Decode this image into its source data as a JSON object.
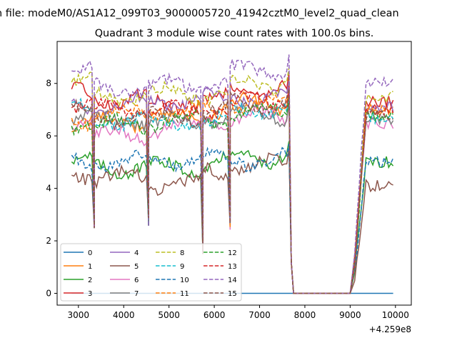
{
  "chart_data": {
    "type": "line",
    "suptitle": "n file: modeM0/AS1A12_099T03_9000005720_41942cztM0_level2_quad_clean",
    "title": "Quadrant 3 module wise count rates with 100.0s bins.",
    "xlabel": "",
    "ylabel": "",
    "x_offset_label": "+4.259e8",
    "xlim": [
      2530,
      10350
    ],
    "ylim": [
      -0.45,
      9.6
    ],
    "xticks": [
      3000,
      4000,
      5000,
      6000,
      7000,
      8000,
      9000,
      10000
    ],
    "xtick_labels": [
      "3000",
      "4000",
      "5000",
      "6000",
      "7000",
      "8000",
      "9000",
      "10000"
    ],
    "yticks": [
      0,
      2,
      4,
      6,
      8
    ],
    "ytick_labels": [
      "0",
      "2",
      "4",
      "6",
      "8"
    ],
    "legend_placement": "lower-left",
    "legend_columns": 4,
    "colors": [
      "#1f77b4",
      "#ff7f0e",
      "#2ca02c",
      "#d62728",
      "#9467bd",
      "#8c564b",
      "#e377c2",
      "#7f7f7f",
      "#bcbd22",
      "#17becf"
    ],
    "x_segments": [
      {
        "start": 2850,
        "end": 3350
      },
      {
        "start": 3350,
        "end": 4550
      },
      {
        "start": 4550,
        "end": 5750
      },
      {
        "start": 5750,
        "end": 6350
      },
      {
        "start": 6350,
        "end": 7650
      },
      {
        "start": 9000,
        "end": 9950
      }
    ],
    "series": [
      {
        "name": "0",
        "style": "solid",
        "color": "#1f77b4",
        "levels": [
          0,
          0,
          0,
          0,
          0,
          0
        ],
        "base": 0
      },
      {
        "name": "1",
        "style": "solid",
        "color": "#ff7f0e",
        "levels": [
          6.4,
          6.6,
          6.7,
          7.0,
          7.2,
          7.0
        ],
        "base": 3.0
      },
      {
        "name": "2",
        "style": "solid",
        "color": "#2ca02c",
        "levels": [
          5.0,
          4.8,
          4.8,
          5.0,
          5.2,
          5.0
        ],
        "base": 3.0
      },
      {
        "name": "3",
        "style": "solid",
        "color": "#d62728",
        "levels": [
          7.6,
          7.4,
          7.2,
          7.4,
          7.8,
          7.3
        ],
        "base": 3.0
      },
      {
        "name": "4",
        "style": "solid",
        "color": "#9467bd",
        "levels": [
          7.2,
          7.2,
          7.3,
          7.4,
          7.5,
          7.1
        ],
        "base": 3.0
      },
      {
        "name": "5",
        "style": "solid",
        "color": "#8c564b",
        "levels": [
          4.6,
          4.4,
          4.2,
          4.6,
          4.9,
          4.1
        ],
        "base": 3.0
      },
      {
        "name": "6",
        "style": "solid",
        "color": "#e377c2",
        "levels": [
          6.6,
          6.0,
          6.3,
          6.6,
          6.7,
          6.5
        ],
        "base": 3.0
      },
      {
        "name": "7",
        "style": "solid",
        "color": "#7f7f7f",
        "levels": [
          6.8,
          6.6,
          6.5,
          6.7,
          6.8,
          6.6
        ],
        "base": 3.0
      },
      {
        "name": "8",
        "style": "dashed",
        "color": "#bcbd22",
        "levels": [
          8.0,
          7.5,
          7.6,
          7.6,
          8.0,
          7.5
        ],
        "base": 3.0
      },
      {
        "name": "9",
        "style": "dashed",
        "color": "#17becf",
        "levels": [
          7.0,
          6.6,
          6.5,
          6.5,
          7.0,
          6.7
        ],
        "base": 3.0
      },
      {
        "name": "10",
        "style": "dashed",
        "color": "#1f77b4",
        "levels": [
          5.0,
          5.0,
          5.1,
          5.2,
          5.1,
          5.0
        ],
        "base": 3.0
      },
      {
        "name": "11",
        "style": "dashed",
        "color": "#ff7f0e",
        "levels": [
          6.6,
          6.8,
          6.9,
          7.0,
          7.2,
          7.0
        ],
        "base": 3.0
      },
      {
        "name": "12",
        "style": "dashed",
        "color": "#2ca02c",
        "levels": [
          6.5,
          6.4,
          6.6,
          6.6,
          6.9,
          6.7
        ],
        "base": 3.0
      },
      {
        "name": "13",
        "style": "dashed",
        "color": "#d62728",
        "levels": [
          7.2,
          7.0,
          7.0,
          7.1,
          7.3,
          7.0
        ],
        "base": 3.0
      },
      {
        "name": "14",
        "style": "dashed",
        "color": "#9467bd",
        "levels": [
          8.4,
          7.8,
          7.9,
          8.0,
          8.5,
          8.1
        ],
        "base": 3.0
      },
      {
        "name": "15",
        "style": "dashed",
        "color": "#8c564b",
        "levels": [
          6.9,
          6.7,
          6.7,
          6.9,
          7.2,
          6.8
        ],
        "base": 3.0
      }
    ]
  }
}
